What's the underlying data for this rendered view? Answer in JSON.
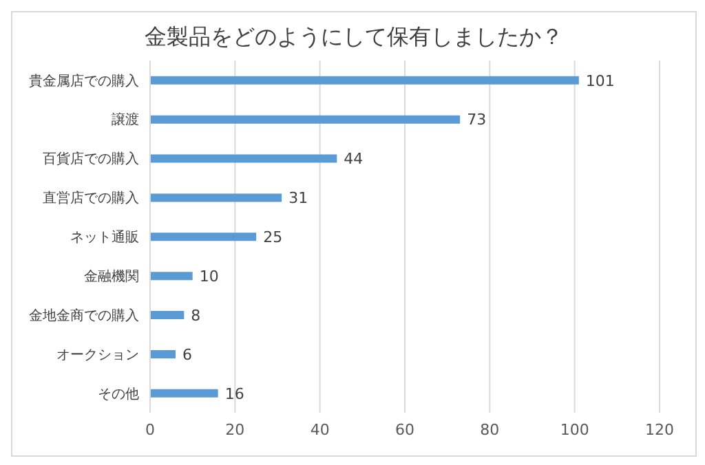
{
  "chart_data": {
    "type": "bar",
    "orientation": "horizontal",
    "title": "金製品をどのようにして保有しましたか？",
    "categories": [
      "貴金属店での購入",
      "譲渡",
      "百貨店での購入",
      "直営店での購入",
      "ネット通販",
      "金融機関",
      "金地金商での購入",
      "オークション",
      "その他"
    ],
    "values": [
      101,
      73,
      44,
      31,
      25,
      10,
      8,
      6,
      16
    ],
    "color": "#5b9bd5",
    "xlim": [
      0,
      120
    ],
    "xticks": [
      0,
      20,
      40,
      60,
      80,
      100,
      120
    ],
    "grid": "x",
    "data_labels": true
  }
}
